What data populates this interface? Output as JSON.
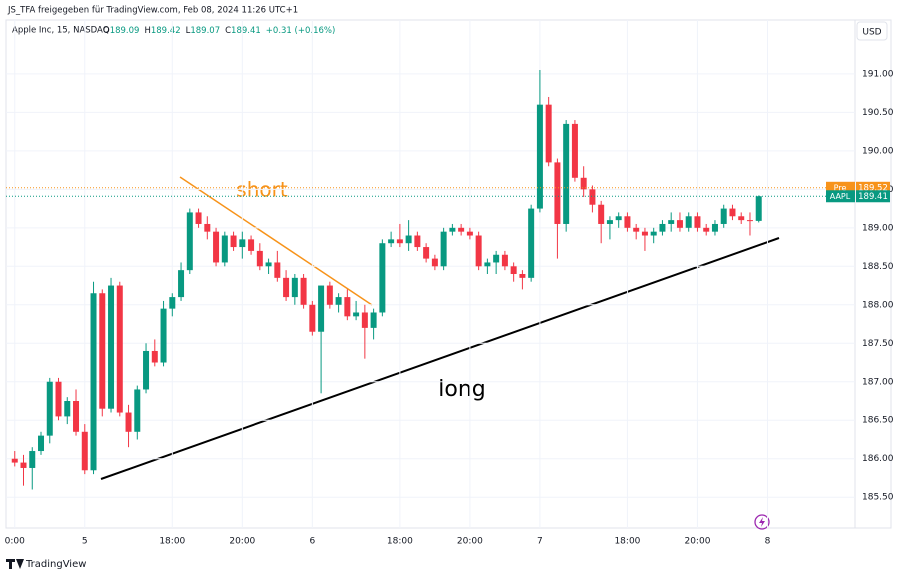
{
  "header": {
    "shared_by": "JS_TFA freigegeben für TradingView.com, Feb 08, 2024 11:26 UTC+1",
    "symbol": "Apple Inc, 15, NASDAQ",
    "ohlc": [
      {
        "key": "O",
        "value": 189.09
      },
      {
        "key": "H",
        "value": 189.42
      },
      {
        "key": "L",
        "value": 189.07
      },
      {
        "key": "C",
        "value": 189.41
      }
    ],
    "change": "+0.31 (+0.16%)"
  },
  "currency": "USD",
  "footer": "TradingView",
  "annotations": [
    "short",
    "long"
  ],
  "chart_data": {
    "type": "candlestick",
    "up_color": "#089981",
    "down_color": "#f23645",
    "series": [
      {
        "name": "AAPL",
        "open": [
          186.0,
          185.95,
          185.88,
          186.1,
          186.3,
          187.0,
          186.55,
          186.75,
          186.35,
          185.85,
          188.15,
          186.65,
          188.25,
          186.6,
          186.35,
          186.9,
          187.4,
          187.25,
          187.95,
          188.1,
          188.45,
          189.2,
          189.05,
          188.95,
          188.55,
          188.9,
          188.75,
          188.85,
          188.7,
          188.5,
          188.55,
          188.35,
          188.1,
          188.35,
          188.0,
          187.65,
          188.25,
          188.0,
          188.1,
          187.85,
          187.9,
          187.7,
          187.9,
          188.8,
          188.85,
          188.8,
          188.9,
          188.75,
          188.6,
          188.5,
          188.95,
          189.0,
          188.95,
          188.9,
          188.5,
          188.55,
          188.65,
          188.5,
          188.4,
          188.35,
          189.25,
          190.6,
          189.85,
          189.05,
          190.35,
          189.65,
          189.5,
          189.3,
          189.05,
          189.1,
          189.15,
          189.0,
          188.95,
          188.9,
          188.95,
          189.05,
          189.1,
          189.0,
          189.15,
          189.0,
          188.95,
          189.05,
          189.25,
          189.15,
          189.1,
          189.09
        ],
        "high": [
          186.1,
          186.05,
          186.15,
          186.35,
          187.05,
          187.05,
          186.8,
          186.9,
          186.45,
          188.3,
          188.2,
          188.35,
          188.3,
          186.7,
          186.95,
          187.5,
          187.55,
          188.05,
          188.15,
          188.55,
          189.25,
          189.25,
          189.15,
          189.0,
          188.95,
          188.95,
          188.95,
          188.9,
          188.8,
          188.6,
          188.7,
          188.45,
          188.4,
          188.4,
          188.05,
          188.25,
          188.3,
          188.15,
          188.2,
          188.05,
          188.0,
          187.95,
          188.85,
          188.95,
          189.05,
          189.1,
          188.95,
          188.8,
          188.65,
          189.0,
          189.05,
          189.05,
          189.0,
          188.95,
          188.6,
          188.7,
          188.7,
          188.55,
          188.45,
          189.3,
          191.05,
          190.7,
          189.9,
          190.4,
          190.4,
          189.8,
          189.55,
          189.35,
          189.15,
          189.2,
          189.2,
          189.05,
          189.0,
          189.0,
          189.1,
          189.2,
          189.2,
          189.2,
          189.2,
          189.05,
          189.1,
          189.3,
          189.3,
          189.2,
          189.2,
          189.42
        ],
        "low": [
          185.9,
          185.65,
          185.6,
          186.05,
          186.2,
          186.5,
          186.45,
          186.3,
          185.8,
          185.8,
          186.55,
          186.6,
          186.55,
          186.15,
          186.25,
          186.85,
          187.2,
          187.2,
          187.85,
          188.05,
          188.4,
          189.0,
          188.85,
          188.5,
          188.5,
          188.7,
          188.6,
          188.65,
          188.45,
          188.4,
          188.3,
          188.05,
          188.0,
          187.95,
          187.6,
          186.85,
          187.95,
          187.9,
          187.8,
          187.8,
          187.3,
          187.55,
          187.85,
          188.75,
          188.75,
          188.7,
          188.7,
          188.55,
          188.45,
          188.45,
          188.9,
          188.9,
          188.85,
          188.45,
          188.4,
          188.4,
          188.45,
          188.3,
          188.2,
          188.3,
          189.2,
          189.8,
          188.6,
          188.95,
          189.6,
          189.4,
          189.2,
          188.8,
          188.85,
          189.0,
          188.95,
          188.85,
          188.7,
          188.8,
          188.9,
          188.95,
          188.95,
          188.95,
          188.95,
          188.9,
          188.9,
          189.0,
          189.1,
          189.05,
          188.9,
          189.07
        ],
        "close": [
          185.95,
          185.88,
          186.1,
          186.3,
          187.0,
          186.55,
          186.75,
          186.35,
          185.85,
          188.15,
          186.65,
          188.25,
          186.6,
          186.35,
          186.9,
          187.4,
          187.25,
          187.95,
          188.1,
          188.45,
          189.2,
          189.05,
          188.95,
          188.55,
          188.9,
          188.75,
          188.85,
          188.7,
          188.5,
          188.55,
          188.35,
          188.1,
          188.35,
          188.0,
          187.65,
          188.25,
          188.0,
          188.1,
          187.85,
          187.9,
          187.7,
          187.9,
          188.8,
          188.85,
          188.8,
          188.9,
          188.75,
          188.6,
          188.5,
          188.95,
          189.0,
          188.95,
          188.9,
          188.5,
          188.55,
          188.65,
          188.5,
          188.4,
          188.35,
          189.25,
          190.6,
          189.85,
          189.05,
          190.35,
          189.65,
          189.5,
          189.3,
          189.05,
          189.1,
          189.15,
          189.0,
          188.95,
          188.9,
          188.95,
          189.05,
          189.1,
          189.0,
          189.15,
          189.0,
          188.95,
          189.05,
          189.25,
          189.15,
          189.1,
          189.09,
          189.41
        ]
      }
    ],
    "price_labels": [
      {
        "label": "Pre",
        "value": 189.52,
        "color": "#f7931a"
      },
      {
        "label": "AAPL",
        "value": 189.41,
        "color": "#089981"
      }
    ],
    "ylim": [
      185.1,
      191.7
    ],
    "yticks": [
      {
        "value": 185.5,
        "label": "185.50"
      },
      {
        "value": 186,
        "label": "186.00"
      },
      {
        "value": 186.5,
        "label": "186.50"
      },
      {
        "value": 187,
        "label": "187.00"
      },
      {
        "value": 187.5,
        "label": "187.50"
      },
      {
        "value": 188,
        "label": "188.00"
      },
      {
        "value": 188.5,
        "label": "188.50"
      },
      {
        "value": 189,
        "label": "189.00"
      },
      {
        "value": 189.5,
        "label": "189.50"
      },
      {
        "value": 190,
        "label": "190.00"
      },
      {
        "value": 190.5,
        "label": "190.50"
      },
      {
        "value": 191,
        "label": "191.00"
      }
    ],
    "xlim": [
      -1,
      96
    ],
    "xticks": [
      {
        "value": 0,
        "label": "0:00"
      },
      {
        "value": 8,
        "label": "5"
      },
      {
        "value": 18,
        "label": "18:00"
      },
      {
        "value": 26,
        "label": "20:00"
      },
      {
        "value": 34,
        "label": "6"
      },
      {
        "value": 44,
        "label": "18:00"
      },
      {
        "value": 52,
        "label": "20:00"
      },
      {
        "value": 60,
        "label": "7"
      },
      {
        "value": 70,
        "label": "18:00"
      },
      {
        "value": 78,
        "label": "20:00"
      },
      {
        "value": 86,
        "label": "8"
      }
    ]
  }
}
